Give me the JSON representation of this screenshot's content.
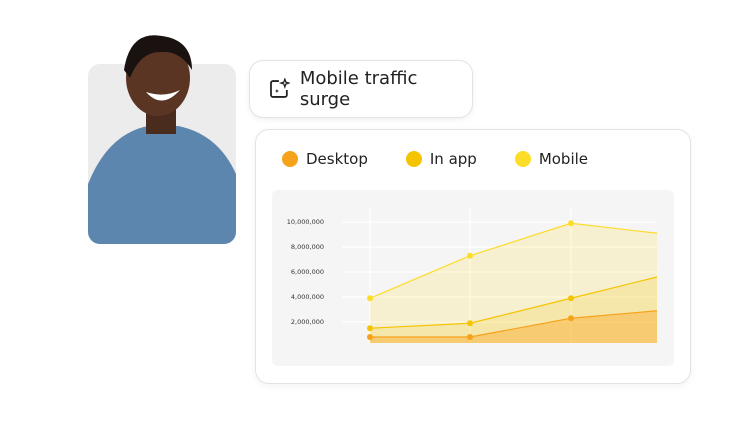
{
  "header": {
    "title": "Mobile traffic surge",
    "icon": "sparkle-image-icon"
  },
  "photo": {
    "description_icon": "person-photo"
  },
  "colors": {
    "desktop": "#f7a21b",
    "in_app": "#f5c400",
    "mobile": "#fddc2a"
  },
  "chart_data": {
    "type": "area",
    "stacked": false,
    "title": "",
    "xlabel": "",
    "ylabel": "",
    "x": [
      1,
      2,
      3,
      4
    ],
    "ylim": [
      0,
      10000000
    ],
    "yticks": [
      "2,000,000",
      "4,000,000",
      "6,000,000",
      "8,000,000",
      "10,000,000"
    ],
    "ytick_values": [
      2000000,
      4000000,
      6000000,
      8000000,
      10000000
    ],
    "grid": true,
    "legend": "top-left",
    "series": [
      {
        "name": "Desktop",
        "color": "#f7a21b",
        "values": [
          800000,
          800000,
          2300000,
          2900000
        ]
      },
      {
        "name": "In app",
        "color": "#f5c400",
        "values": [
          1500000,
          1900000,
          3900000,
          5600000
        ]
      },
      {
        "name": "Mobile",
        "color": "#fddc2a",
        "values": [
          3900000,
          7300000,
          9900000,
          9100000
        ]
      }
    ]
  }
}
